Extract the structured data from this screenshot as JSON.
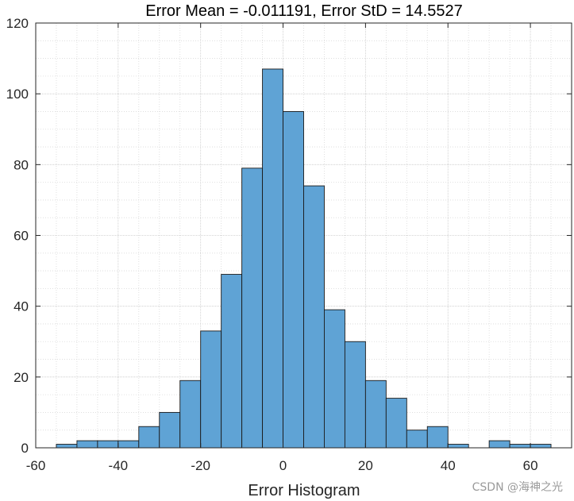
{
  "chart_data": {
    "type": "bar",
    "title": "Error Mean = -0.011191, Error StD = 14.5527",
    "xlabel": "Error Histogram",
    "ylabel": "",
    "xlim": [
      -60,
      70
    ],
    "ylim": [
      0,
      120
    ],
    "bin_width": 5,
    "bin_edges": [
      -55,
      -50,
      -45,
      -40,
      -35,
      -30,
      -25,
      -20,
      -15,
      -10,
      -5,
      0,
      5,
      10,
      15,
      20,
      25,
      30,
      35,
      40,
      45,
      50,
      55,
      60,
      65
    ],
    "counts": [
      1,
      2,
      2,
      2,
      6,
      10,
      19,
      33,
      49,
      79,
      107,
      95,
      74,
      39,
      30,
      19,
      14,
      5,
      6,
      1,
      0,
      2,
      1,
      1
    ],
    "x_ticks": [
      "-60",
      "-40",
      "-20",
      "0",
      "20",
      "40",
      "60"
    ],
    "y_ticks": [
      "0",
      "20",
      "40",
      "60",
      "80",
      "100",
      "120"
    ],
    "grid": true,
    "minor_grid": true,
    "bar_color": "#5fa3d5",
    "bar_edge_color": "#1a1a1a"
  },
  "watermark": "CSDN @海神之光"
}
